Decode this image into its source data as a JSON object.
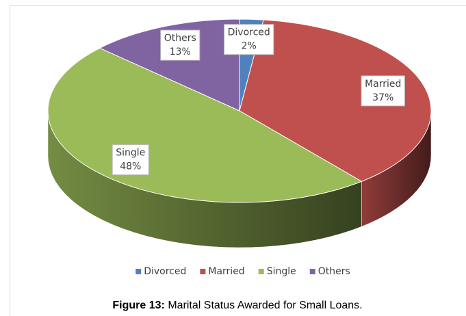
{
  "chart_data": {
    "type": "pie3d",
    "categories": [
      "Divorced",
      "Married",
      "Single",
      "Others"
    ],
    "values": [
      2,
      37,
      48,
      13
    ],
    "value_labels": [
      "2%",
      "37%",
      "48%",
      "13%"
    ],
    "colors": [
      "#4f81bd",
      "#c0504d",
      "#9bbb59",
      "#8064a2"
    ],
    "legend": "bottom",
    "caption": {
      "label": "Figure 13:",
      "text": "Marital Status Awarded for Small Loans."
    }
  }
}
